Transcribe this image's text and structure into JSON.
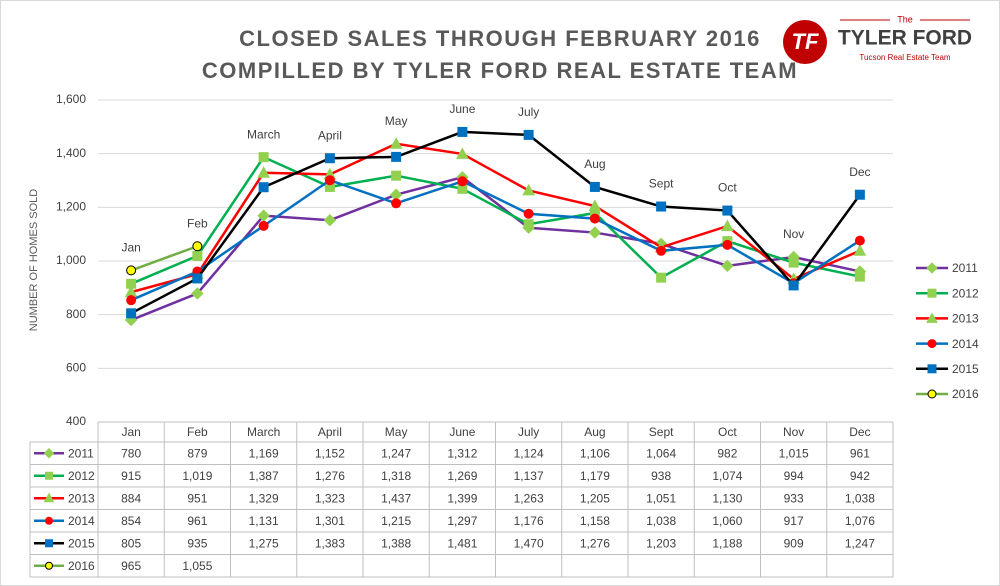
{
  "chart_data": {
    "type": "line",
    "title": "CLOSED SALES THROUGH FEBRUARY 2016",
    "subtitle": "COMPILLED BY TYLER FORD REAL ESTATE TEAM",
    "y_label": "NUMBER OF HOMES SOLD",
    "categories": [
      "Jan",
      "Feb",
      "March",
      "April",
      "May",
      "June",
      "July",
      "Aug",
      "Sept",
      "Oct",
      "Nov",
      "Dec"
    ],
    "ylim": [
      400,
      1600
    ],
    "yticks": [
      400,
      600,
      800,
      {
        "value": 1000,
        "label": "1,000"
      },
      {
        "value": 1200,
        "label": "1,200"
      },
      {
        "value": 1400,
        "label": "1,400"
      },
      {
        "value": 1600,
        "label": "1,600"
      }
    ],
    "grid": true,
    "legend": "right",
    "series": [
      {
        "name": "2011",
        "color": "#7030a0",
        "marker": "diamond",
        "marker_color": "#92d050",
        "values": [
          780,
          879,
          1169,
          1152,
          1247,
          1312,
          1124,
          1106,
          1064,
          982,
          1015,
          961
        ],
        "value_labels": [
          "780",
          "879",
          "1,169",
          "1,152",
          "1,247",
          "1,312",
          "1,124",
          "1,106",
          "1,064",
          "982",
          "1,015",
          "961"
        ]
      },
      {
        "name": "2012",
        "color": "#00b050",
        "marker": "square",
        "marker_color": "#92d050",
        "values": [
          915,
          1019,
          1387,
          1276,
          1318,
          1269,
          1137,
          1179,
          938,
          1074,
          994,
          942
        ],
        "value_labels": [
          "915",
          "1,019",
          "1,387",
          "1,276",
          "1,318",
          "1,269",
          "1,137",
          "1,179",
          "938",
          "1,074",
          "994",
          "942"
        ]
      },
      {
        "name": "2013",
        "color": "#ff0000",
        "marker": "triangle",
        "marker_color": "#92d050",
        "values": [
          884,
          951,
          1329,
          1323,
          1437,
          1399,
          1263,
          1205,
          1051,
          1130,
          933,
          1038
        ],
        "value_labels": [
          "884",
          "951",
          "1,329",
          "1,323",
          "1,437",
          "1,399",
          "1,263",
          "1,205",
          "1,051",
          "1,130",
          "933",
          "1,038"
        ]
      },
      {
        "name": "2014",
        "color": "#0070c0",
        "marker": "circle",
        "marker_color": "#ff0000",
        "values": [
          854,
          961,
          1131,
          1301,
          1215,
          1297,
          1176,
          1158,
          1038,
          1060,
          917,
          1076
        ],
        "value_labels": [
          "854",
          "961",
          "1,131",
          "1,301",
          "1,215",
          "1,297",
          "1,176",
          "1,158",
          "1,038",
          "1,060",
          "917",
          "1,076"
        ]
      },
      {
        "name": "2015",
        "color": "#000000",
        "marker": "square",
        "marker_color": "#0070c0",
        "values": [
          805,
          935,
          1275,
          1383,
          1388,
          1481,
          1470,
          1276,
          1203,
          1188,
          909,
          1247
        ],
        "value_labels": [
          "805",
          "935",
          "1,275",
          "1,383",
          "1,388",
          "1,481",
          "1,470",
          "1,276",
          "1,203",
          "1,188",
          "909",
          "1,247"
        ]
      },
      {
        "name": "2016",
        "color": "#70ad47",
        "marker": "circle",
        "marker_color": "#ffff00",
        "values": [
          965,
          1055,
          null,
          null,
          null,
          null,
          null,
          null,
          null,
          null,
          null,
          null
        ],
        "value_labels": [
          "965",
          "1,055",
          null,
          null,
          null,
          null,
          null,
          null,
          null,
          null,
          null,
          null
        ]
      }
    ]
  },
  "logo": {
    "small": "The",
    "name": "TYLER FORD",
    "tagline": "Tucson Real Estate Team",
    "icon": "TF"
  }
}
